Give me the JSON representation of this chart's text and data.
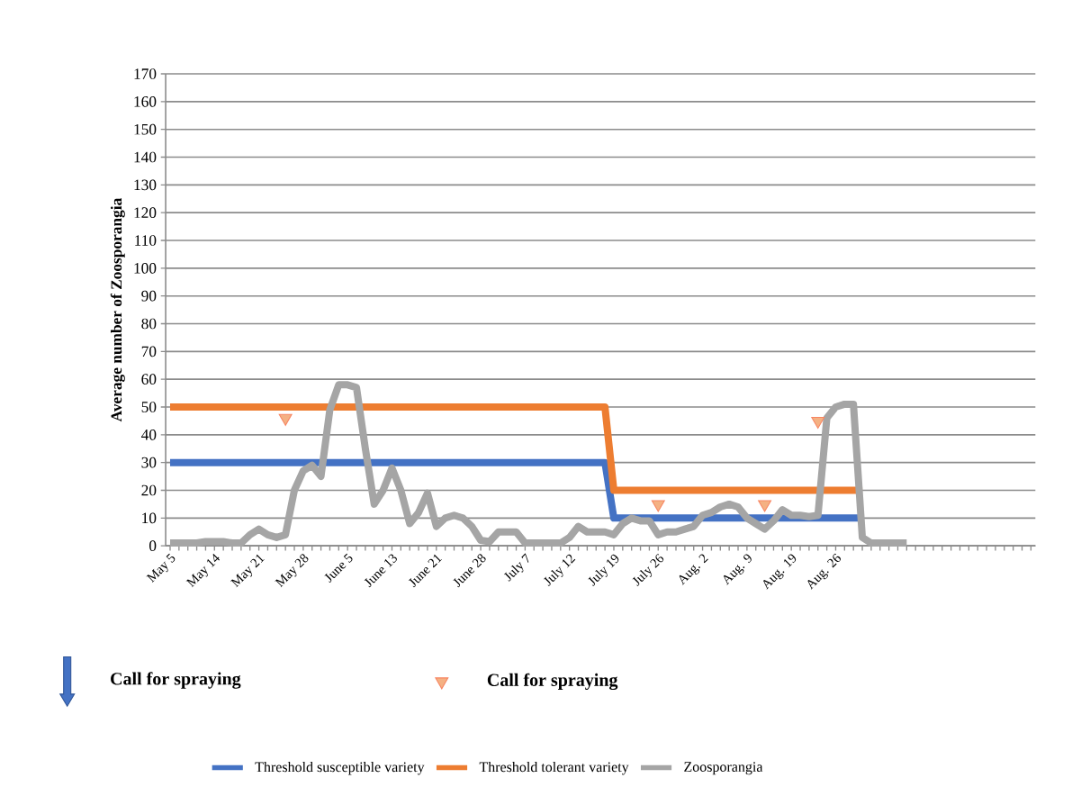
{
  "chart_data": {
    "type": "line",
    "ylabel": "Average number of  Zoosporangia",
    "categories": [
      "May 5",
      null,
      null,
      null,
      null,
      "May 14",
      null,
      null,
      null,
      null,
      "May 21",
      null,
      null,
      null,
      null,
      "May 28",
      null,
      null,
      null,
      null,
      "June 5",
      null,
      null,
      null,
      null,
      "June 13",
      null,
      null,
      null,
      null,
      "June 21",
      null,
      null,
      null,
      null,
      "June 28",
      null,
      null,
      null,
      null,
      "July 7",
      null,
      null,
      null,
      null,
      "July 12",
      null,
      null,
      null,
      null,
      "July 19",
      null,
      null,
      null,
      null,
      "July 26",
      null,
      null,
      null,
      null,
      "Aug. 2",
      null,
      null,
      null,
      null,
      "Aug. 9",
      null,
      null,
      null,
      null,
      "Aug. 19",
      null,
      null,
      null,
      null,
      "Aug. 26",
      null,
      null,
      null,
      null,
      null,
      null,
      null,
      null,
      null,
      null,
      null,
      null,
      null,
      null,
      null,
      null,
      null,
      null,
      null,
      null,
      null,
      null
    ],
    "series": [
      {
        "name": "Threshold susceptible variety",
        "color": "#4472c4",
        "values": [
          30,
          30,
          30,
          30,
          30,
          30,
          30,
          30,
          30,
          30,
          30,
          30,
          30,
          30,
          30,
          30,
          30,
          30,
          30,
          30,
          30,
          30,
          30,
          30,
          30,
          30,
          30,
          30,
          30,
          30,
          30,
          30,
          30,
          30,
          30,
          30,
          30,
          30,
          30,
          30,
          30,
          30,
          30,
          30,
          30,
          30,
          30,
          30,
          30,
          30,
          10,
          10,
          10,
          10,
          10,
          10,
          10,
          10,
          10,
          10,
          10,
          10,
          10,
          10,
          10,
          10,
          10,
          10,
          10,
          10,
          10,
          10,
          10,
          10,
          10,
          10,
          10,
          10,
          10,
          null,
          null,
          null,
          null,
          null,
          null,
          null,
          null,
          null,
          null,
          null,
          null,
          null,
          null,
          null,
          null,
          null,
          null,
          null
        ]
      },
      {
        "name": "Threshold tolerant variety",
        "color": "#ed7d31",
        "values": [
          50,
          50,
          50,
          50,
          50,
          50,
          50,
          50,
          50,
          50,
          50,
          50,
          50,
          50,
          50,
          50,
          50,
          50,
          50,
          50,
          50,
          50,
          50,
          50,
          50,
          50,
          50,
          50,
          50,
          50,
          50,
          50,
          50,
          50,
          50,
          50,
          50,
          50,
          50,
          50,
          50,
          50,
          50,
          50,
          50,
          50,
          50,
          50,
          50,
          50,
          20,
          20,
          20,
          20,
          20,
          20,
          20,
          20,
          20,
          20,
          20,
          20,
          20,
          20,
          20,
          20,
          20,
          20,
          20,
          20,
          20,
          20,
          20,
          20,
          20,
          20,
          20,
          20,
          20,
          null,
          null,
          null,
          null,
          null,
          null,
          null,
          null,
          null,
          null,
          null,
          null,
          null,
          null,
          null,
          null,
          null,
          null,
          null
        ]
      },
      {
        "name": "Zoosporangia",
        "color": "#a5a5a5",
        "values": [
          1,
          1,
          1,
          1,
          1.5,
          1.5,
          1.5,
          1,
          1,
          4,
          6,
          4,
          3,
          4,
          20,
          27,
          29,
          25,
          49,
          58,
          58,
          57,
          35,
          15,
          20,
          28,
          20,
          8,
          12,
          19,
          7,
          10,
          11,
          10,
          7,
          2,
          1.5,
          5,
          5,
          5,
          1,
          1,
          1,
          1,
          1,
          3,
          7,
          5,
          5,
          5,
          4,
          8,
          10,
          9,
          9,
          4,
          5,
          5,
          6,
          7,
          11,
          12,
          14,
          15,
          14,
          10,
          8,
          6,
          9,
          13,
          11,
          11,
          10.5,
          11,
          46,
          50,
          51,
          51,
          3,
          1,
          1,
          1,
          1,
          1,
          null,
          null,
          null,
          null,
          null,
          null,
          null,
          null,
          null,
          null,
          null,
          null,
          null,
          null
        ]
      },
      {
        "name": "Call for spraying",
        "type": "scatter",
        "marker": "triangle",
        "color": "#f4b183",
        "values": [
          null,
          null,
          null,
          null,
          null,
          null,
          null,
          null,
          null,
          null,
          null,
          null,
          null,
          46,
          null,
          null,
          null,
          null,
          null,
          null,
          null,
          null,
          null,
          null,
          null,
          null,
          null,
          null,
          null,
          null,
          null,
          null,
          null,
          null,
          null,
          null,
          null,
          null,
          null,
          null,
          null,
          null,
          null,
          null,
          null,
          null,
          null,
          null,
          null,
          null,
          null,
          null,
          null,
          null,
          null,
          15,
          null,
          null,
          null,
          null,
          null,
          null,
          null,
          null,
          null,
          null,
          null,
          15,
          null,
          null,
          null,
          null,
          null,
          45,
          null,
          null,
          null,
          null,
          null,
          null,
          null,
          null,
          null,
          null,
          null,
          null,
          null,
          null,
          null,
          null,
          null,
          null,
          null,
          null,
          null,
          null,
          null,
          null
        ]
      }
    ],
    "annotations": [
      "Call for spraying"
    ],
    "ylim": [
      0,
      170
    ],
    "yticks": [
      0,
      10,
      20,
      30,
      40,
      50,
      60,
      70,
      80,
      90,
      100,
      110,
      120,
      130,
      140,
      150,
      160,
      170
    ],
    "grid": "y",
    "legend": "bottom"
  }
}
